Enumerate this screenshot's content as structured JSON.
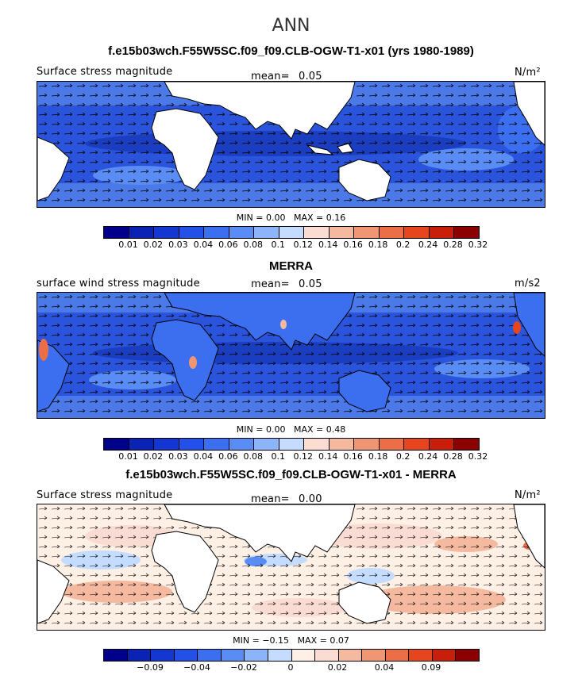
{
  "figure_title": "ANN",
  "panels": [
    {
      "title": "f.e15b03wch.F55W5SC.f09_f09.CLB-OGW-T1-x01 (yrs 1980-1989)",
      "left_label": "Surface stress magnitude",
      "mean_label": "mean=",
      "mean_value": "0.05",
      "units": "N/m²",
      "min_label": "MIN =",
      "min_value": "0.00",
      "max_label": "MAX =",
      "max_value": "0.16",
      "colorbar_ticks": [
        "0.01",
        "0.02",
        "0.03",
        "0.04",
        "0.06",
        "0.08",
        "0.1",
        "0.12",
        "0.14",
        "0.16",
        "0.18",
        "0.2",
        "0.24",
        "0.28",
        "0.32"
      ],
      "colormap": [
        "#00008b",
        "#0a23b4",
        "#1437d2",
        "#2350e6",
        "#3c6ef0",
        "#5a8cf5",
        "#8cb4fa",
        "#c3dcff",
        "#fadcd2",
        "#f5b9a0",
        "#f09673",
        "#eb6e46",
        "#e6461e",
        "#c81e0a",
        "#8b0000"
      ]
    },
    {
      "title": "MERRA",
      "left_label": "surface wind stress magnitude",
      "mean_label": "mean=",
      "mean_value": "0.05",
      "units": "m/s2",
      "min_label": "MIN =",
      "min_value": "0.00",
      "max_label": "MAX =",
      "max_value": "0.48",
      "colorbar_ticks": [
        "0.01",
        "0.02",
        "0.03",
        "0.04",
        "0.06",
        "0.08",
        "0.1",
        "0.12",
        "0.14",
        "0.16",
        "0.18",
        "0.2",
        "0.24",
        "0.28",
        "0.32"
      ],
      "colormap": [
        "#00008b",
        "#0a23b4",
        "#1437d2",
        "#2350e6",
        "#3c6ef0",
        "#5a8cf5",
        "#8cb4fa",
        "#c3dcff",
        "#fadcd2",
        "#f5b9a0",
        "#f09673",
        "#eb6e46",
        "#e6461e",
        "#c81e0a",
        "#8b0000"
      ]
    },
    {
      "title": "f.e15b03wch.F55W5SC.f09_f09.CLB-OGW-T1-x01 - MERRA",
      "left_label": "Surface stress magnitude",
      "mean_label": "mean=",
      "mean_value": "0.00",
      "units": "N/m²",
      "min_label": "MIN =",
      "min_value": "−0.15",
      "max_label": "MAX =",
      "max_value": "0.07",
      "colorbar_ticks": [
        "−0.09",
        "−0.04",
        "−0.02",
        "0",
        "0.02",
        "0.04",
        "0.09"
      ],
      "colormap": [
        "#00008b",
        "#0a23b4",
        "#1437d2",
        "#2350e6",
        "#3c6ef0",
        "#5a8cf5",
        "#8cb4fa",
        "#c3dcff",
        "#fff0e6",
        "#fadcd2",
        "#f5b9a0",
        "#f09673",
        "#eb6e46",
        "#e6461e",
        "#c81e0a",
        "#8b0000"
      ]
    }
  ]
}
